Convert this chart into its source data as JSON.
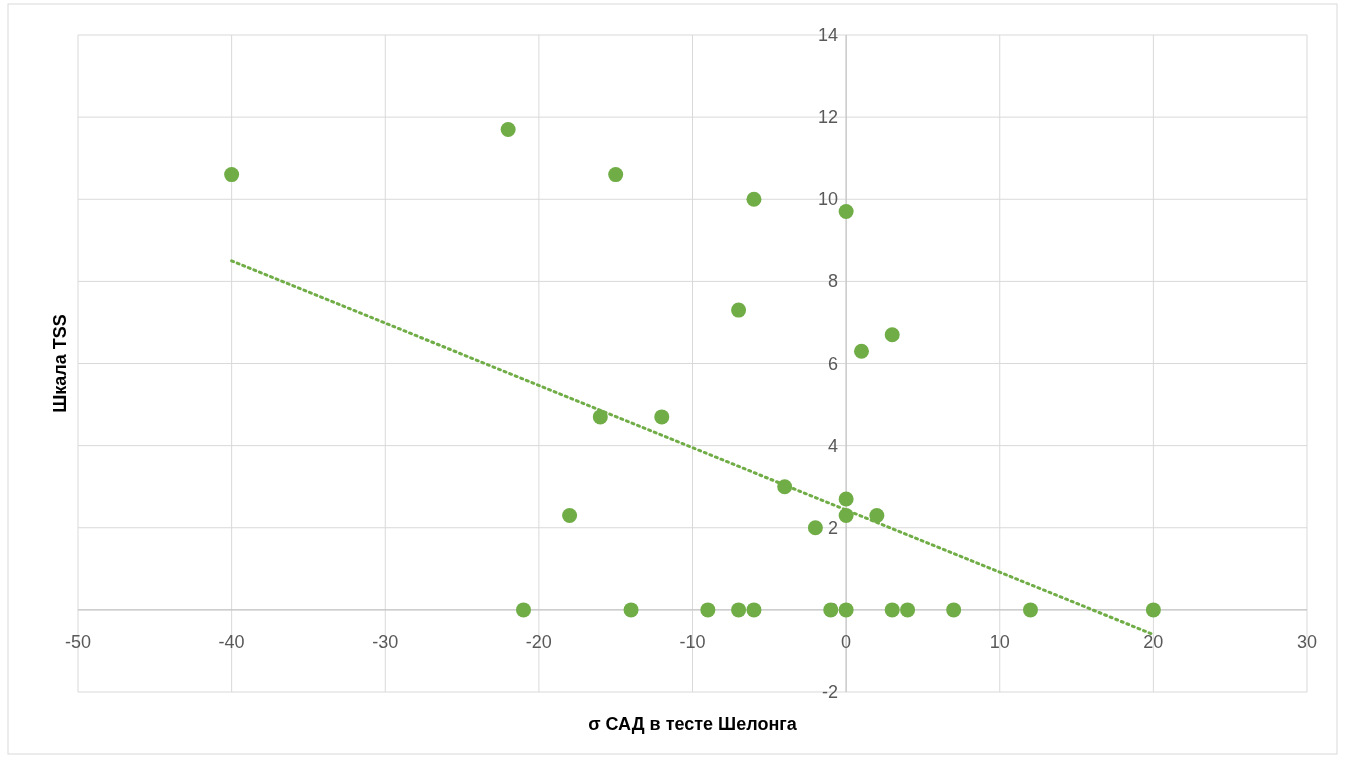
{
  "chart_data": {
    "type": "scatter",
    "xlabel": "σ САД в тесте Шелонга",
    "ylabel": "Шкала TSS",
    "xlim": [
      -50,
      30
    ],
    "xticks": [
      -50,
      -40,
      -30,
      -20,
      -10,
      0,
      10,
      20,
      30
    ],
    "ylim": [
      -2,
      14
    ],
    "yticks": [
      -2,
      0,
      2,
      4,
      6,
      8,
      10,
      12,
      14
    ],
    "grid": true,
    "series": [
      {
        "marker": "circle",
        "color": "#70ad47",
        "x": [
          -40,
          -22,
          -15,
          -6,
          0,
          -7,
          1,
          3,
          -16,
          -12,
          -4,
          0,
          0,
          2,
          -18,
          -2,
          -21,
          -14,
          -9,
          -7,
          -6,
          -1,
          0,
          3,
          4,
          7,
          12,
          20
        ],
        "values": [
          10.6,
          11.7,
          10.6,
          10,
          9.7,
          7.3,
          6.3,
          6.7,
          4.7,
          4.7,
          3,
          2.7,
          2.3,
          2.3,
          2.3,
          2,
          0,
          0,
          0,
          0,
          0,
          0,
          0,
          0,
          0,
          0,
          0,
          0
        ]
      },
      {
        "type": "line",
        "color": "#70ad47",
        "line_style": "dotted",
        "x": [
          -40,
          20
        ],
        "values": [
          8.5,
          -0.6
        ]
      }
    ]
  }
}
